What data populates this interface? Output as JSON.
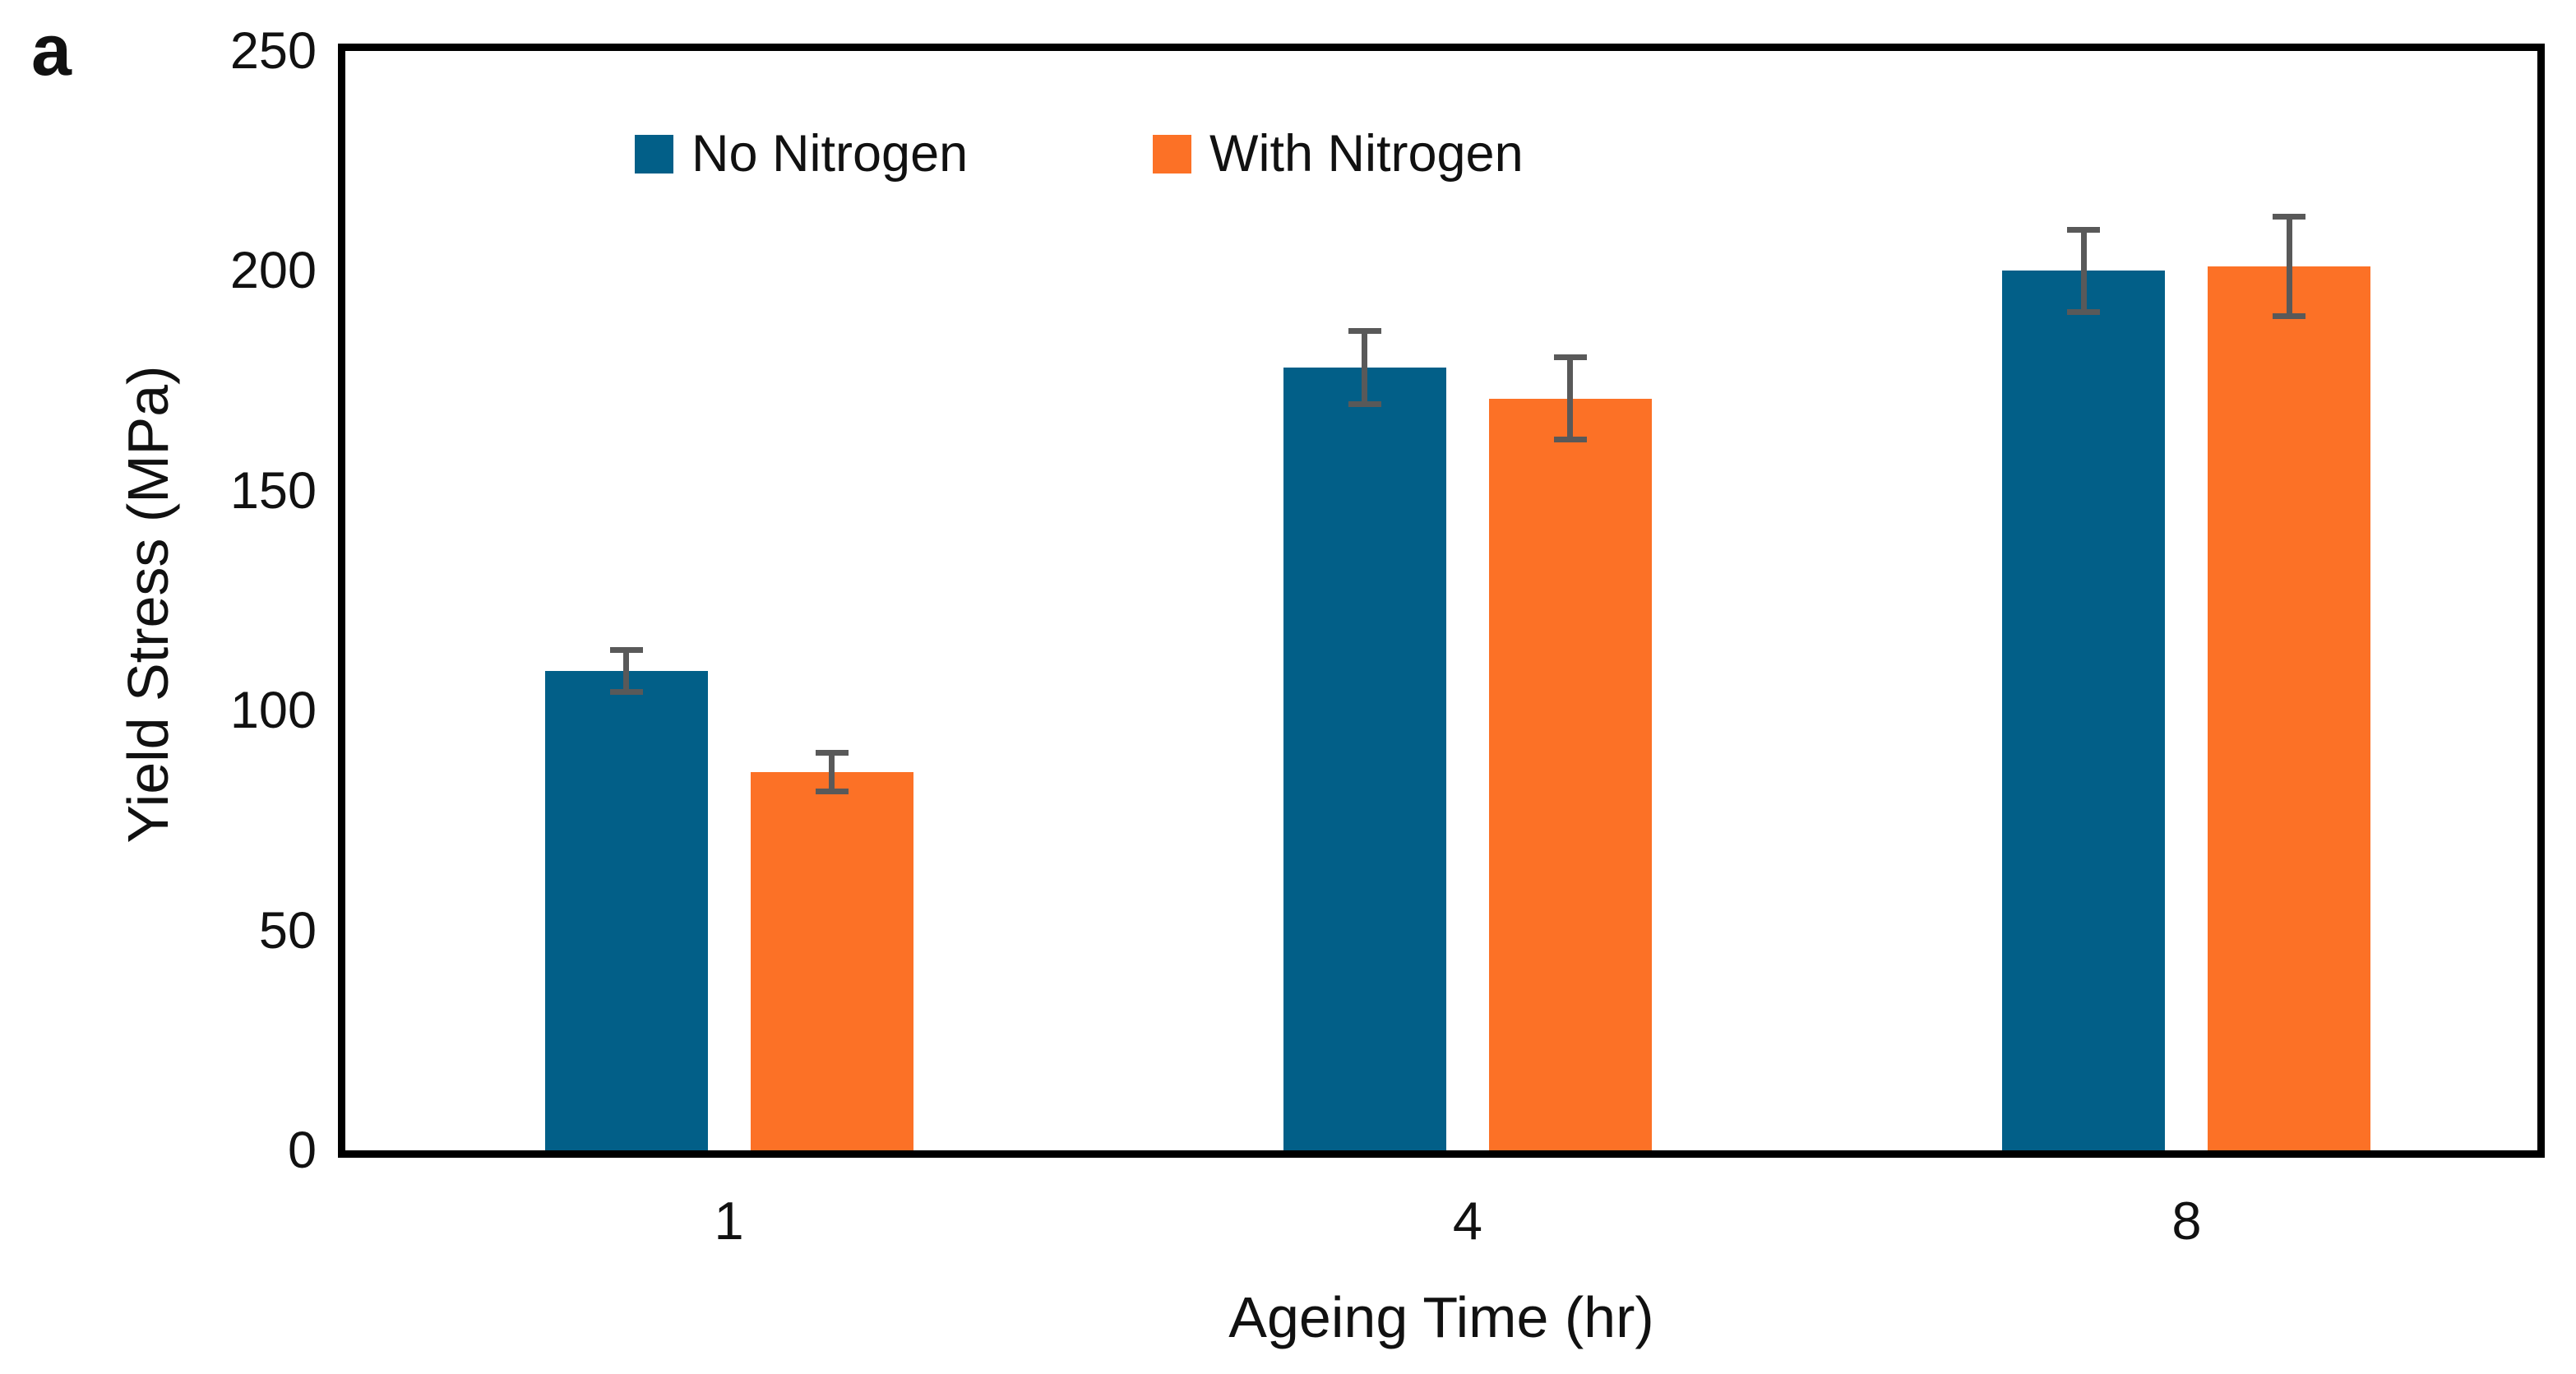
{
  "chart_data": {
    "type": "bar",
    "panel_label": "a",
    "categories": [
      "1",
      "4",
      "8"
    ],
    "series": [
      {
        "name": "No Nitrogen",
        "color": "#025F88",
        "values": [
          109,
          178,
          200
        ],
        "errors": [
          5.5,
          9,
          10
        ]
      },
      {
        "name": "With Nitrogen",
        "color": "#FC7126",
        "values": [
          86,
          171,
          201
        ],
        "errors": [
          5,
          10,
          12
        ]
      }
    ],
    "xlabel": "Ageing Time (hr)",
    "ylabel": "Yield Stress (MPa)",
    "ylim": [
      0,
      250
    ],
    "yticks": [
      0,
      50,
      100,
      150,
      200,
      250
    ],
    "grid": false,
    "legend_position": "top-inside",
    "error_bar_color": "#595959",
    "axis_color": "#000000",
    "background_color": "#FFFFFF"
  }
}
